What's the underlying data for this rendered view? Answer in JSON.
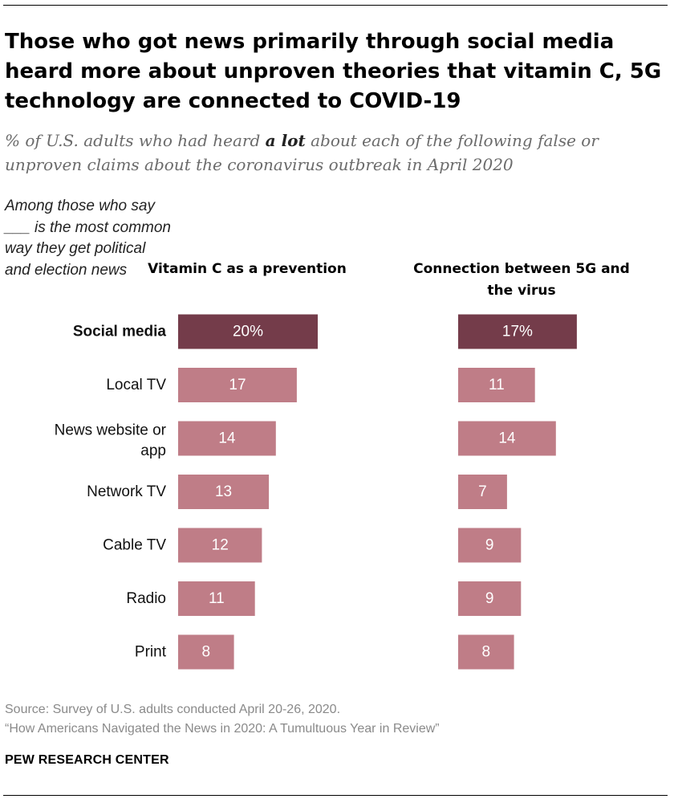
{
  "title": "Those who got news primarily through social media heard more about unproven theories that vitamin C, 5G technology are connected to COVID-19",
  "subtitle": {
    "before": "% of U.S. adults who had heard ",
    "emphasis": "a lot",
    "after": " about each of the following false or unproven claims about the coronavirus outbreak in April 2020"
  },
  "row_header": "Among those who say ___ is the most common way they get political and election news",
  "colors": {
    "highlight": "#743c4a",
    "bar": "#bf7d87",
    "label_on_bar": "#ffffff"
  },
  "chart_data": {
    "type": "bar",
    "orientation": "horizontal",
    "categories": [
      "Social media",
      "Local TV",
      "News website or app",
      "Network TV",
      "Cable TV",
      "Radio",
      "Print"
    ],
    "highlight_category": "Social media",
    "series": [
      {
        "name": "Vitamin C as a prevention",
        "values": [
          20,
          17,
          14,
          13,
          12,
          11,
          8
        ],
        "labels": [
          "20%",
          "17",
          "14",
          "13",
          "12",
          "11",
          "8"
        ]
      },
      {
        "name": "Connection between 5G and the virus",
        "values": [
          17,
          11,
          14,
          7,
          9,
          9,
          8
        ],
        "labels": [
          "17%",
          "11",
          "14",
          "7",
          "9",
          "9",
          "8"
        ]
      }
    ],
    "xlim": [
      0,
      20
    ],
    "grid": false,
    "legend": "none"
  },
  "footer": {
    "source": "Source: Survey of U.S. adults conducted April 20-26, 2020.",
    "report": "“How Americans Navigated the News in 2020: A Tumultuous Year in Review”"
  },
  "brand": "PEW RESEARCH CENTER"
}
